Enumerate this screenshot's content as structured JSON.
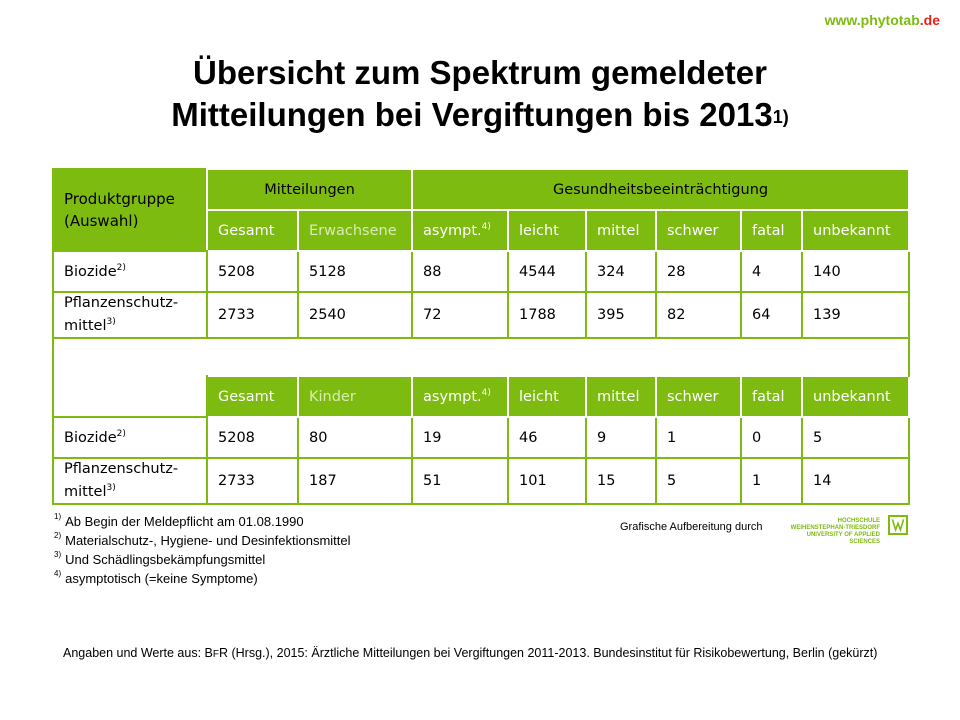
{
  "site": {
    "www": "www.phytotab",
    "tld": ".de"
  },
  "title": {
    "line1": "Übersicht zum Spektrum gemeldeter",
    "line2": "Mitteilungen bei Vergiftungen bis 2013",
    "sup": "1)"
  },
  "table": {
    "rowhead": "Produktgruppe (Auswahl)",
    "group1": "Mitteilungen",
    "group2": "Gesundheitsbeeinträchtigung",
    "section1": {
      "cols": [
        "Gesamt",
        "Erwachsene",
        "asympt.",
        "leicht",
        "mittel",
        "schwer",
        "fatal",
        "unbekannt"
      ],
      "asympt_sup": "4)",
      "rows": [
        {
          "label": "Biozide",
          "sup": "2)",
          "values": [
            "5208",
            "5128",
            "88",
            "4544",
            "324",
            "28",
            "4",
            "140"
          ]
        },
        {
          "label": "Pflanzenschutz-mittel",
          "sup": "3)",
          "values": [
            "2733",
            "2540",
            "72",
            "1788",
            "395",
            "82",
            "64",
            "139"
          ]
        }
      ]
    },
    "section2": {
      "cols": [
        "Gesamt",
        "Kinder",
        "asympt.",
        "leicht",
        "mittel",
        "schwer",
        "fatal",
        "unbekannt"
      ],
      "asympt_sup": "4)",
      "rows": [
        {
          "label": "Biozide",
          "sup": "2)",
          "values": [
            "5208",
            "80",
            "19",
            "46",
            "9",
            "1",
            "0",
            "5"
          ]
        },
        {
          "label": "Pflanzenschutz-mittel",
          "sup": "3)",
          "values": [
            "2733",
            "187",
            "51",
            "101",
            "15",
            "5",
            "1",
            "14"
          ]
        }
      ]
    }
  },
  "footnotes": [
    {
      "mark": "1)",
      "text": "Ab Begin der Meldepflicht am 01.08.1990"
    },
    {
      "mark": "2)",
      "text": "Materialschutz-, Hygiene- und Desinfektionsmittel"
    },
    {
      "mark": "3)",
      "text": "Und Schädlingsbekämpfungsmittel"
    },
    {
      "mark": "4)",
      "text": "asymptotisch (=keine Symptome)"
    }
  ],
  "credit": "Grafische Aufbereitung durch",
  "logo_text": {
    "line1": "HOCHSCHULE",
    "line2": "WEIHENSTEPHAN-TRIESDORF",
    "line3": "UNIVERSITY OF APPLIED SCIENCES"
  },
  "source": {
    "pre": "Angaben und Werte aus: B",
    "sc": "F",
    "post": "R (Hrsg.), 2015: Ärztliche Mitteilungen bei Vergiftungen 2011-2013. Bundesinstitut für Risikobewertung, Berlin (gekürzt)"
  }
}
